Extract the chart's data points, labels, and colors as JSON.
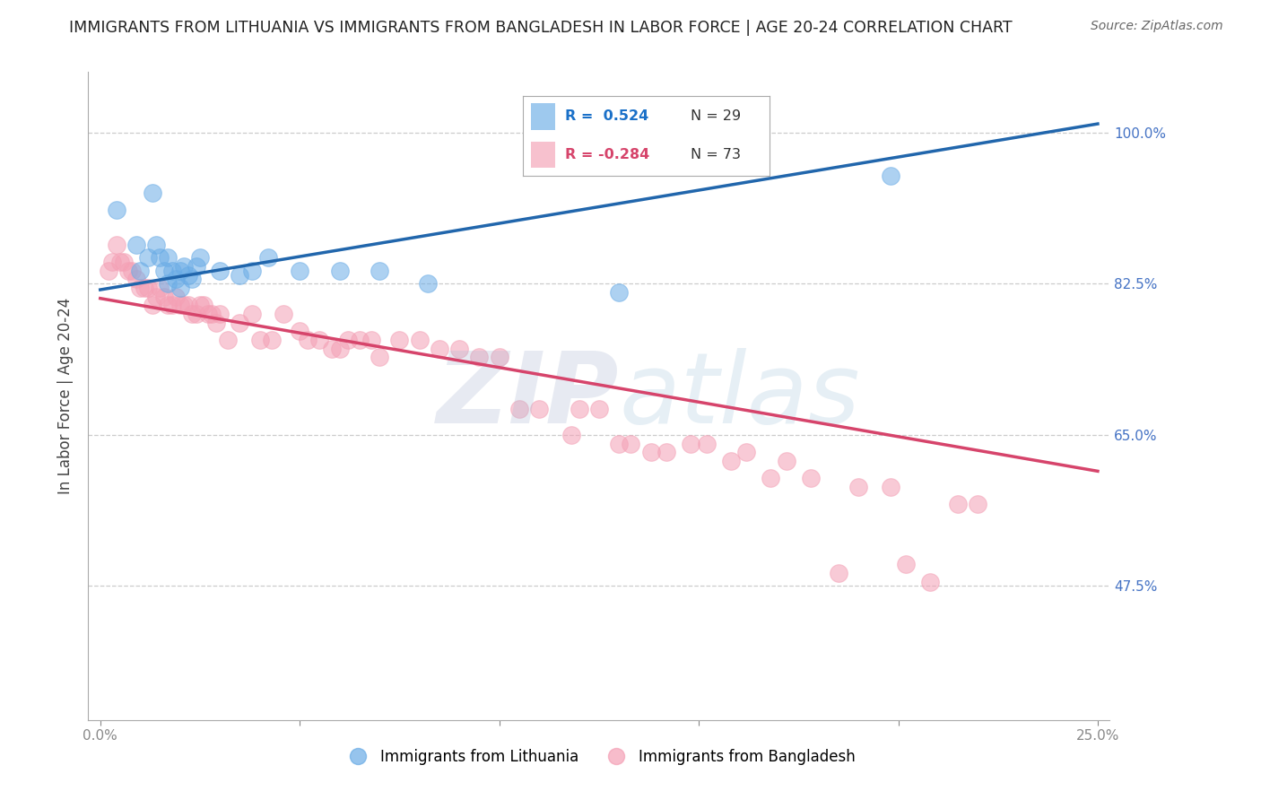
{
  "title": "IMMIGRANTS FROM LITHUANIA VS IMMIGRANTS FROM BANGLADESH IN LABOR FORCE | AGE 20-24 CORRELATION CHART",
  "source": "Source: ZipAtlas.com",
  "ylabel": "In Labor Force | Age 20-24",
  "xlim": [
    -0.003,
    0.253
  ],
  "ylim": [
    0.32,
    1.07
  ],
  "yticks": [
    0.475,
    0.65,
    0.825,
    1.0
  ],
  "ytick_labels": [
    "47.5%",
    "65.0%",
    "82.5%",
    "100.0%"
  ],
  "xtick_labels": [
    "0.0%",
    "",
    "",
    "",
    "",
    "25.0%"
  ],
  "blue_color": "#6aace6",
  "pink_color": "#f4a0b5",
  "blue_line_color": "#2166ac",
  "pink_line_color": "#d6446b",
  "watermark": "ZIPatlas",
  "blue_points_x": [
    0.004,
    0.009,
    0.01,
    0.012,
    0.013,
    0.014,
    0.015,
    0.016,
    0.017,
    0.017,
    0.018,
    0.019,
    0.02,
    0.02,
    0.021,
    0.022,
    0.023,
    0.024,
    0.025,
    0.03,
    0.035,
    0.038,
    0.042,
    0.05,
    0.06,
    0.07,
    0.082,
    0.13,
    0.198
  ],
  "blue_points_y": [
    0.91,
    0.87,
    0.84,
    0.855,
    0.93,
    0.87,
    0.855,
    0.84,
    0.855,
    0.825,
    0.84,
    0.83,
    0.84,
    0.82,
    0.845,
    0.835,
    0.83,
    0.845,
    0.855,
    0.84,
    0.835,
    0.84,
    0.855,
    0.84,
    0.84,
    0.84,
    0.825,
    0.815,
    0.95
  ],
  "pink_points_x": [
    0.002,
    0.003,
    0.004,
    0.005,
    0.006,
    0.007,
    0.008,
    0.009,
    0.01,
    0.011,
    0.012,
    0.013,
    0.014,
    0.015,
    0.016,
    0.017,
    0.018,
    0.019,
    0.02,
    0.021,
    0.022,
    0.023,
    0.024,
    0.025,
    0.026,
    0.027,
    0.028,
    0.029,
    0.03,
    0.032,
    0.035,
    0.038,
    0.04,
    0.043,
    0.046,
    0.05,
    0.052,
    0.055,
    0.058,
    0.06,
    0.062,
    0.065,
    0.068,
    0.07,
    0.075,
    0.08,
    0.085,
    0.09,
    0.095,
    0.1,
    0.105,
    0.11,
    0.118,
    0.12,
    0.125,
    0.13,
    0.133,
    0.138,
    0.142,
    0.148,
    0.152,
    0.158,
    0.162,
    0.168,
    0.172,
    0.178,
    0.185,
    0.19,
    0.198,
    0.202,
    0.208,
    0.215,
    0.22
  ],
  "pink_points_y": [
    0.84,
    0.85,
    0.87,
    0.85,
    0.85,
    0.84,
    0.84,
    0.83,
    0.82,
    0.82,
    0.82,
    0.8,
    0.81,
    0.82,
    0.81,
    0.8,
    0.8,
    0.81,
    0.8,
    0.8,
    0.8,
    0.79,
    0.79,
    0.8,
    0.8,
    0.79,
    0.79,
    0.78,
    0.79,
    0.76,
    0.78,
    0.79,
    0.76,
    0.76,
    0.79,
    0.77,
    0.76,
    0.76,
    0.75,
    0.75,
    0.76,
    0.76,
    0.76,
    0.74,
    0.76,
    0.76,
    0.75,
    0.75,
    0.74,
    0.74,
    0.68,
    0.68,
    0.65,
    0.68,
    0.68,
    0.64,
    0.64,
    0.63,
    0.63,
    0.64,
    0.64,
    0.62,
    0.63,
    0.6,
    0.62,
    0.6,
    0.49,
    0.59,
    0.59,
    0.5,
    0.48,
    0.57,
    0.57
  ]
}
